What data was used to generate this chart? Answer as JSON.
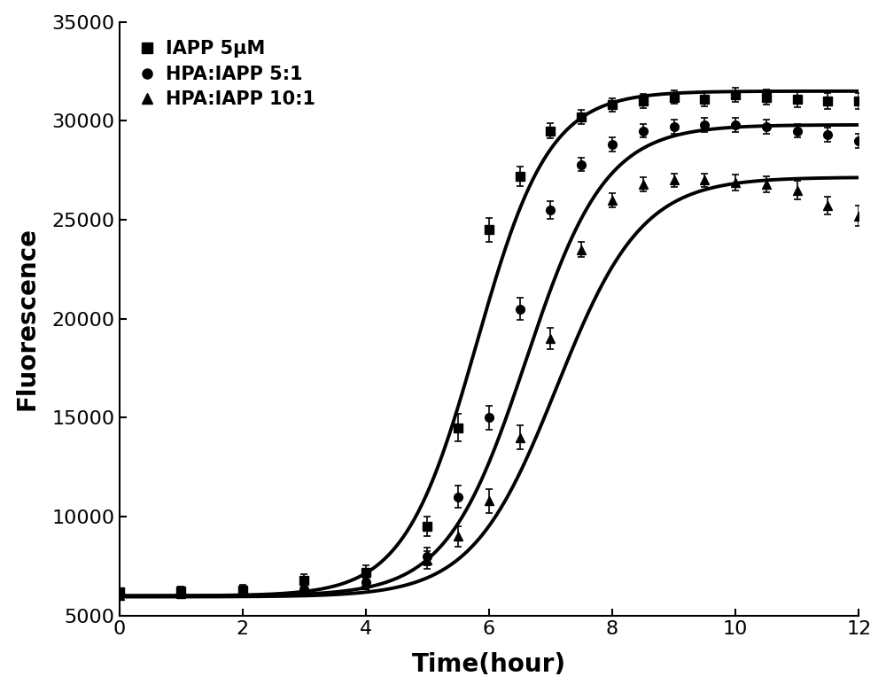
{
  "title": "",
  "xlabel": "Time(hour)",
  "ylabel": "Fluorescence",
  "xlim": [
    0,
    12
  ],
  "ylim": [
    5000,
    35000
  ],
  "xticks": [
    0,
    2,
    4,
    6,
    8,
    10,
    12
  ],
  "yticks": [
    5000,
    10000,
    15000,
    20000,
    25000,
    30000,
    35000
  ],
  "series": [
    {
      "label": "IAPP 5μM",
      "marker": "s",
      "color": "black",
      "x_data": [
        0,
        1,
        2,
        3,
        4,
        5,
        5.5,
        6,
        6.5,
        7,
        7.5,
        8,
        8.5,
        9,
        9.5,
        10,
        10.5,
        11,
        11.5,
        12
      ],
      "y_data": [
        6200,
        6250,
        6300,
        6800,
        7200,
        9500,
        14500,
        24500,
        27200,
        29500,
        30200,
        30800,
        31000,
        31200,
        31100,
        31300,
        31200,
        31100,
        31000,
        31000
      ],
      "y_err": [
        200,
        200,
        250,
        300,
        350,
        500,
        700,
        600,
        500,
        400,
        350,
        350,
        350,
        350,
        350,
        350,
        400,
        400,
        400,
        400
      ],
      "sigmoid_params": {
        "L": 25500,
        "k": 1.7,
        "x0": 5.8,
        "y0": 6000
      }
    },
    {
      "label": "HPA:IAPP 5:1",
      "marker": "o",
      "color": "black",
      "x_data": [
        0,
        1,
        2,
        3,
        4,
        5,
        5.5,
        6,
        6.5,
        7,
        7.5,
        8,
        8.5,
        9,
        9.5,
        10,
        10.5,
        11,
        11.5,
        12
      ],
      "y_data": [
        6100,
        6150,
        6200,
        6350,
        6700,
        8000,
        11000,
        15000,
        20500,
        25500,
        27800,
        28800,
        29500,
        29700,
        29800,
        29800,
        29700,
        29500,
        29300,
        29000
      ],
      "y_err": [
        200,
        200,
        250,
        300,
        350,
        450,
        550,
        600,
        550,
        450,
        350,
        350,
        350,
        350,
        350,
        350,
        350,
        350,
        350,
        350
      ],
      "sigmoid_params": {
        "L": 23800,
        "k": 1.55,
        "x0": 6.6,
        "y0": 6000
      }
    },
    {
      "label": "HPA:IAPP 10:1",
      "marker": "^",
      "color": "black",
      "x_data": [
        0,
        1,
        2,
        3,
        4,
        5,
        5.5,
        6,
        6.5,
        7,
        7.5,
        8,
        8.5,
        9,
        9.5,
        10,
        10.5,
        11,
        11.5,
        12
      ],
      "y_data": [
        6000,
        6100,
        6200,
        6300,
        6700,
        7800,
        9000,
        10800,
        14000,
        19000,
        23500,
        26000,
        26800,
        27000,
        27000,
        26900,
        26800,
        26500,
        25700,
        25200
      ],
      "y_err": [
        200,
        200,
        250,
        300,
        350,
        450,
        500,
        600,
        600,
        550,
        400,
        350,
        350,
        350,
        350,
        400,
        400,
        450,
        450,
        500
      ],
      "sigmoid_params": {
        "L": 21200,
        "k": 1.45,
        "x0": 7.1,
        "y0": 5950
      }
    }
  ],
  "background_color": "#ffffff",
  "tick_fontsize": 16,
  "label_fontsize": 20,
  "legend_fontsize": 15,
  "linewidth": 2.8,
  "markersize": 7
}
